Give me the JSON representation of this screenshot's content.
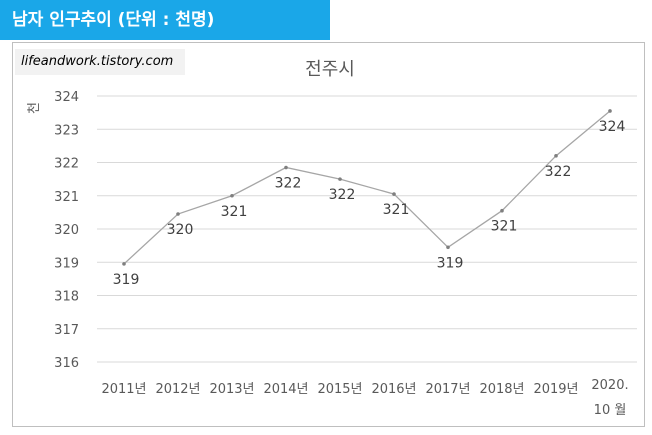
{
  "banner": {
    "text": "남자 인구추이 (단위 : 천명)",
    "bg": "#1aa7e8"
  },
  "watermark": {
    "text": "lifeandwork.tistory.com"
  },
  "chart_data": {
    "type": "line",
    "title": "전주시",
    "ylabel": "천",
    "xlabel": "",
    "ylim": [
      316,
      324
    ],
    "yticks": [
      316,
      317,
      318,
      319,
      320,
      321,
      322,
      323,
      324
    ],
    "categories": [
      "2011년",
      "2012년",
      "2013년",
      "2014년",
      "2015년",
      "2016년",
      "2017년",
      "2018년",
      "2019년",
      "2020. 10 월"
    ],
    "values": [
      318.95,
      320.45,
      321.0,
      321.85,
      321.5,
      321.05,
      319.45,
      320.55,
      322.2,
      323.55
    ],
    "data_labels": [
      "319",
      "320",
      "321",
      "322",
      "322",
      "321",
      "319",
      "321",
      "322",
      "324"
    ],
    "line_color": "#a6a6a6",
    "grid": true
  }
}
